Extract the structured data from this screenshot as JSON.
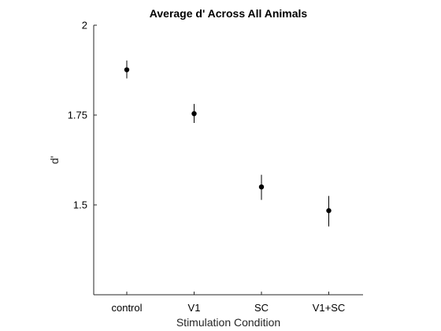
{
  "chart_data": {
    "type": "scatter",
    "title": "Average d' Across All Animals",
    "xlabel": "Stimulation Condition",
    "ylabel": "d'",
    "categories": [
      "control",
      "V1",
      "SC",
      "V1+SC"
    ],
    "values": [
      1.876,
      1.754,
      1.55,
      1.484
    ],
    "error_low": [
      1.852,
      1.728,
      1.514,
      1.44
    ],
    "error_high": [
      1.902,
      1.781,
      1.584,
      1.525
    ],
    "ylim": [
      1.25,
      2.0
    ],
    "yticks": [
      1.5,
      1.75,
      2
    ],
    "ytick_labels": [
      "1.5",
      "1.75",
      "2"
    ],
    "grid": false,
    "marker_color": "#000000"
  }
}
